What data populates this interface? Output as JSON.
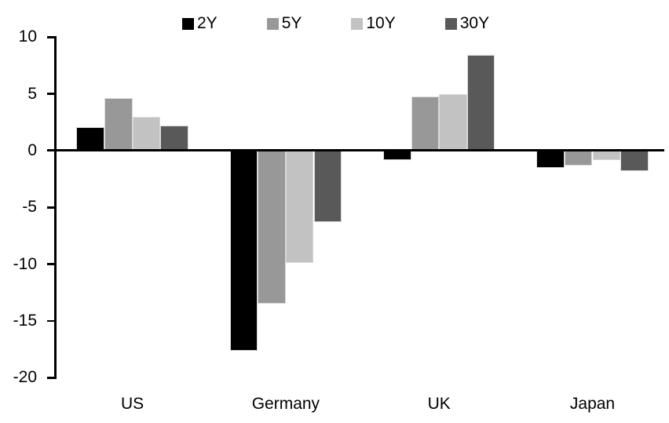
{
  "chart_data": {
    "type": "bar",
    "title": "",
    "categories": [
      "US",
      "Germany",
      "UK",
      "Japan"
    ],
    "series": [
      {
        "name": "2Y",
        "color": "#000000",
        "values": [
          2.1,
          -17.6,
          -0.8,
          -1.5
        ]
      },
      {
        "name": "5Y",
        "color": "#989898",
        "values": [
          4.6,
          -13.5,
          4.8,
          -1.3
        ]
      },
      {
        "name": "10Y",
        "color": "#c2c2c2",
        "values": [
          3.0,
          -9.9,
          5.0,
          -0.8
        ]
      },
      {
        "name": "30Y",
        "color": "#595959",
        "values": [
          2.2,
          -6.3,
          8.4,
          -1.8
        ]
      }
    ],
    "yticks": [
      10,
      5,
      0,
      -5,
      -10,
      -15,
      -20
    ],
    "ylim": [
      -20,
      10
    ],
    "xlabel": "",
    "ylabel": "",
    "grid": false,
    "legend_position": "top",
    "background": "#ffffff",
    "axis_color": "#000000"
  }
}
